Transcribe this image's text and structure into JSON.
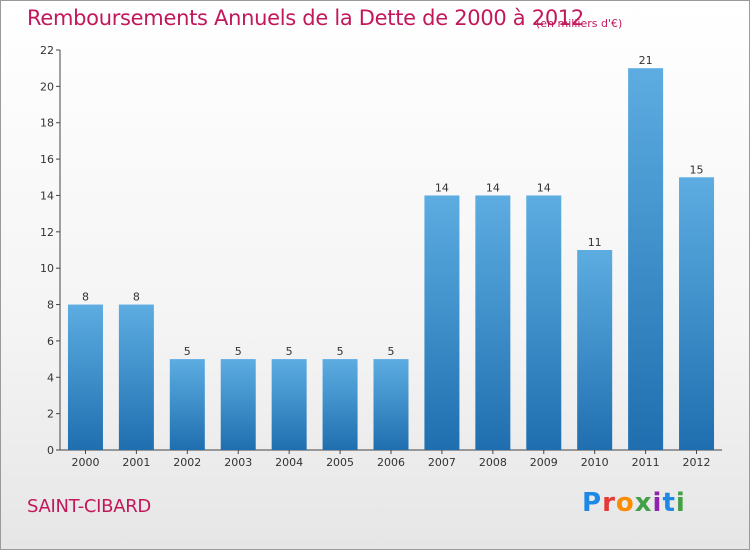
{
  "title": "Remboursements Annuels de la Dette de 2000 à 2012",
  "unit_note": "(en milliers d'€)",
  "commune": "SAINT-CIBARD",
  "logo_text": "Proxiti",
  "colors": {
    "bar_top": "#5dade2",
    "bar_bottom": "#1f6fb0",
    "title": "#c2185b"
  },
  "chart_data": {
    "type": "bar",
    "categories": [
      "2000",
      "2001",
      "2002",
      "2003",
      "2004",
      "2005",
      "2006",
      "2007",
      "2008",
      "2009",
      "2010",
      "2011",
      "2012"
    ],
    "values": [
      8,
      8,
      5,
      5,
      5,
      5,
      5,
      14,
      14,
      14,
      11,
      21,
      15
    ],
    "title": "Remboursements Annuels de la Dette de 2000 à 2012",
    "xlabel": "",
    "ylabel": "",
    "ylim": [
      0,
      22
    ],
    "yticks": [
      0,
      2,
      4,
      6,
      8,
      10,
      12,
      14,
      16,
      18,
      20,
      22
    ],
    "grid": false,
    "legend": "none"
  }
}
